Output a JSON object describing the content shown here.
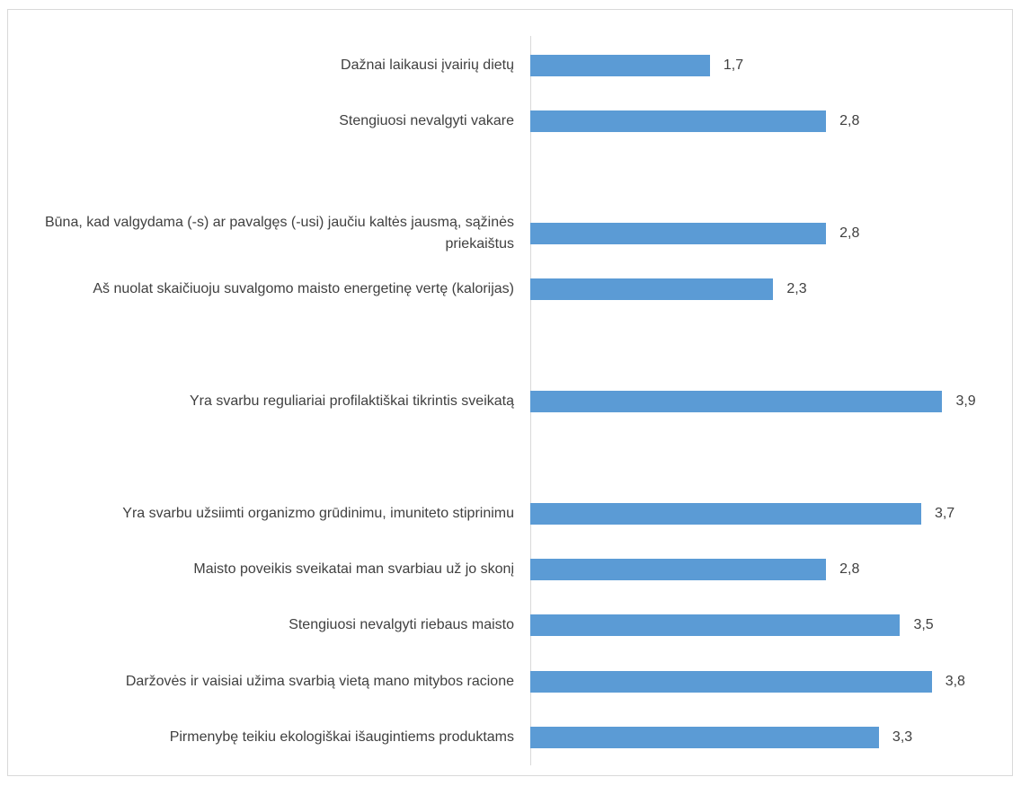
{
  "chart_data": {
    "type": "barh",
    "categories": [
      "Dažnai laikausi įvairių dietų",
      "Stengiuosi nevalgyti vakare",
      null,
      "Būna, kad valgydama (-s) ar pavalgęs (-usi) jaučiu kaltės jausmą, sąžinės priekaištus",
      "Aš nuolat skaičiuoju suvalgomo maisto energetinę vertę (kalorijas)",
      null,
      "Yra svarbu reguliariai profilaktiškai tikrintis sveikatą",
      null,
      "Yra svarbu užsiimti organizmo grūdinimu, imuniteto stiprinimu",
      "Maisto poveikis sveikatai man svarbiau už jo skonį",
      "Stengiuosi nevalgyti riebaus maisto",
      "Daržovės ir vaisiai užima svarbią vietą mano mitybos racione",
      "Pirmenybę teikiu ekologiškai išaugintiems produktams"
    ],
    "values": [
      1.7,
      2.8,
      null,
      2.8,
      2.3,
      null,
      3.9,
      null,
      3.7,
      2.8,
      3.5,
      3.8,
      3.3
    ],
    "value_labels": [
      "1,7",
      "2,8",
      null,
      "2,8",
      "2,3",
      null,
      "3,9",
      null,
      "3,7",
      "2,8",
      "3,5",
      "3,8",
      "3,3"
    ],
    "color": "#5b9bd5",
    "xlim": [
      0,
      4.5
    ]
  }
}
